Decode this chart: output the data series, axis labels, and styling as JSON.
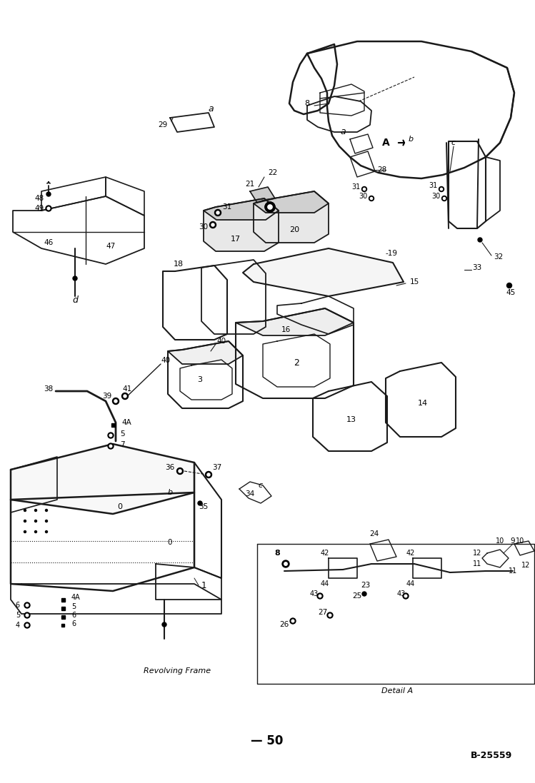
{
  "fig_width": 7.49,
  "fig_height": 10.97,
  "dpi": 100,
  "bg": "#ffffff",
  "lc": "#1a1a1a",
  "page_number": "— 50",
  "doc_ref": "B-25559",
  "revolving_frame": "Revolving Frame",
  "detail_a": "Detail A"
}
